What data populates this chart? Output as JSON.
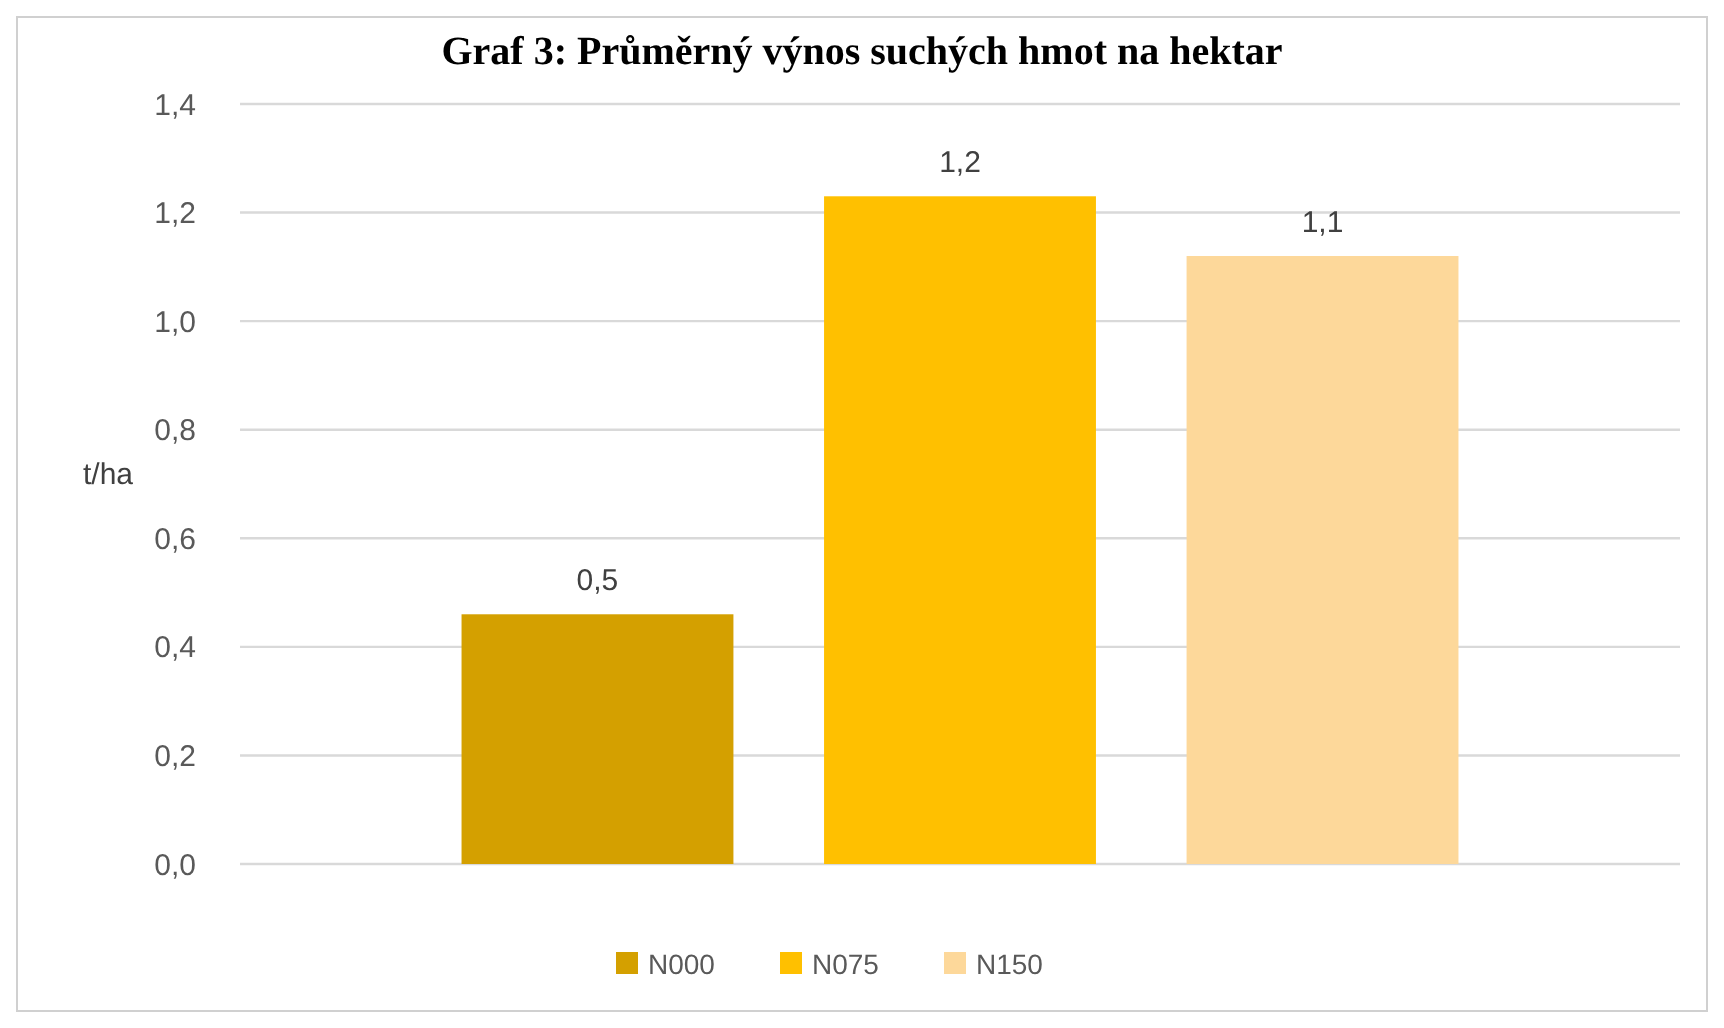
{
  "chart_data": {
    "type": "bar",
    "title": "Graf 3: Průměrný výnos suchých hmot na hektar",
    "ylabel": "t/ha",
    "categories": [
      null
    ],
    "series": [
      {
        "name": "N000",
        "color": "#d4a000",
        "values": [
          0.46
        ],
        "value_labels": [
          "0,5"
        ]
      },
      {
        "name": "N075",
        "color": "#ffc000",
        "values": [
          1.23
        ],
        "value_labels": [
          "1,2"
        ]
      },
      {
        "name": "N150",
        "color": "#fdd89a",
        "values": [
          1.12
        ],
        "value_labels": [
          "1,1"
        ]
      }
    ],
    "ylim": [
      0,
      1.4
    ],
    "yticks": [
      {
        "value": 0,
        "label": "0,0"
      },
      {
        "value": 0.2,
        "label": "0,2"
      },
      {
        "value": 0.4,
        "label": "0,4"
      },
      {
        "value": 0.6,
        "label": "0,6"
      },
      {
        "value": 0.8,
        "label": "0,8"
      },
      {
        "value": 1,
        "label": "1,0"
      },
      {
        "value": 1.2,
        "label": "1,2"
      },
      {
        "value": 1.4,
        "label": "1,4"
      }
    ],
    "grid": "y",
    "legend": "bottom"
  }
}
